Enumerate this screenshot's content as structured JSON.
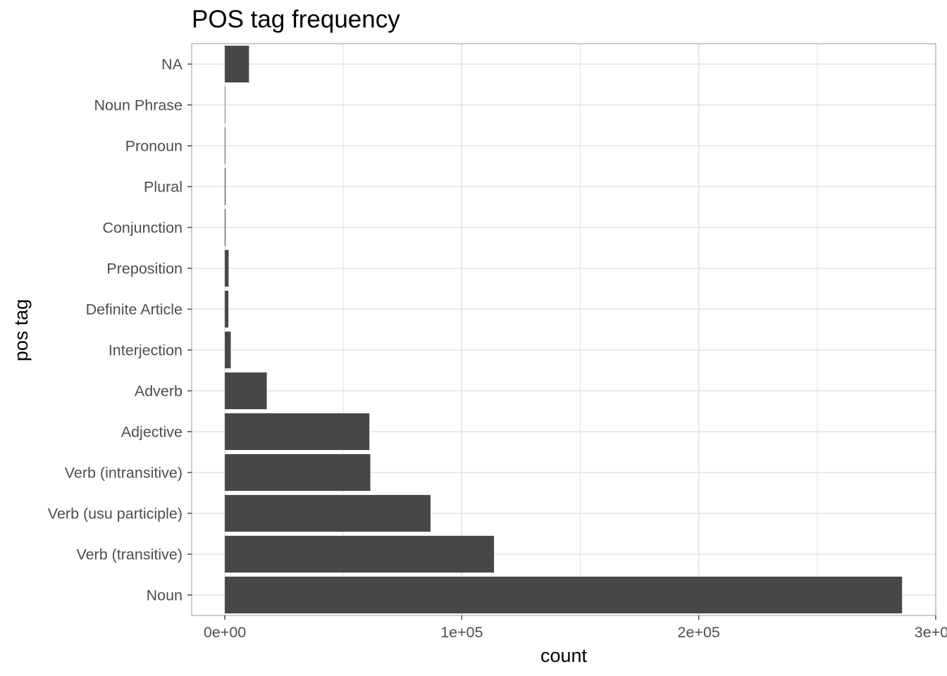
{
  "chart_data": {
    "type": "bar",
    "orientation": "horizontal",
    "title": "POS tag frequency",
    "xlabel": "count",
    "ylabel": "pos tag",
    "categories": [
      "NA",
      "Noun Phrase",
      "Pronoun",
      "Plural",
      "Conjunction",
      "Preposition",
      "Definite Article",
      "Interjection",
      "Adverb",
      "Adjective",
      "Verb (intransitive)",
      "Verb (usu participle)",
      "Verb (transitive)",
      "Noun"
    ],
    "values": [
      10200,
      30,
      250,
      300,
      300,
      1600,
      1500,
      2500,
      17700,
      61000,
      61400,
      86800,
      113600,
      285800
    ],
    "xlim": [
      -14000,
      300000
    ],
    "x_ticks": [
      0,
      100000,
      200000,
      300000
    ],
    "x_tick_labels": [
      "0e+00",
      "1e+05",
      "2e+05",
      "3e+05"
    ],
    "grid": true,
    "bar_color": "#474747",
    "grid_color": "#dedede",
    "border_color": "#b3b3b3"
  }
}
